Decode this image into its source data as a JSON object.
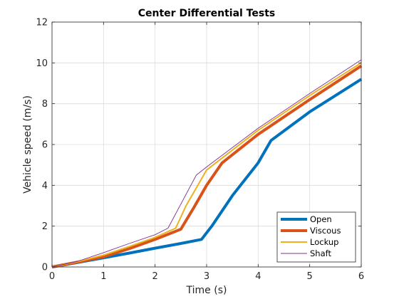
{
  "chart_data": {
    "type": "line",
    "title": "Center Differential Tests",
    "xlabel": "Time (s)",
    "ylabel": "Vehicle speed (m/s)",
    "xlim": [
      0,
      6
    ],
    "ylim": [
      0,
      12
    ],
    "xticks": [
      0,
      1,
      2,
      3,
      4,
      5,
      6
    ],
    "yticks": [
      0,
      2,
      4,
      6,
      8,
      10,
      12
    ],
    "grid": true,
    "legend_position": "bottom-right",
    "series": [
      {
        "name": "Open",
        "color": "#0072BD",
        "weight": "heavy",
        "x": [
          0,
          0.5,
          1,
          1.5,
          2,
          2.5,
          2.9,
          3.1,
          3.5,
          4.0,
          4.25,
          5.0,
          6.0
        ],
        "y": [
          0,
          0.22,
          0.45,
          0.68,
          0.92,
          1.15,
          1.35,
          2.0,
          3.5,
          5.1,
          6.2,
          7.6,
          9.2
        ]
      },
      {
        "name": "Viscous",
        "color": "#D95319",
        "weight": "heavy",
        "x": [
          0,
          0.5,
          1,
          1.5,
          2,
          2.5,
          2.75,
          3.0,
          3.3,
          4.0,
          5.0,
          6.0
        ],
        "y": [
          0,
          0.24,
          0.5,
          0.9,
          1.35,
          1.85,
          2.9,
          4.0,
          5.1,
          6.5,
          8.2,
          9.85
        ]
      },
      {
        "name": "Lockup",
        "color": "#EDB120",
        "weight": "medium",
        "x": [
          0,
          0.5,
          1,
          1.5,
          2,
          2.4,
          2.6,
          3.0,
          4.0,
          5.0,
          6.0
        ],
        "y": [
          0,
          0.26,
          0.58,
          1.0,
          1.45,
          1.9,
          3.0,
          4.75,
          6.7,
          8.4,
          10.0
        ]
      },
      {
        "name": "Shaft",
        "color": "#7E2F8E",
        "weight": "thin",
        "x": [
          0,
          0.5,
          1,
          1.5,
          2,
          2.25,
          2.8,
          3.0,
          4.0,
          5.0,
          6.0
        ],
        "y": [
          0,
          0.28,
          0.7,
          1.15,
          1.58,
          1.9,
          4.5,
          4.9,
          6.8,
          8.5,
          10.15
        ]
      }
    ]
  }
}
